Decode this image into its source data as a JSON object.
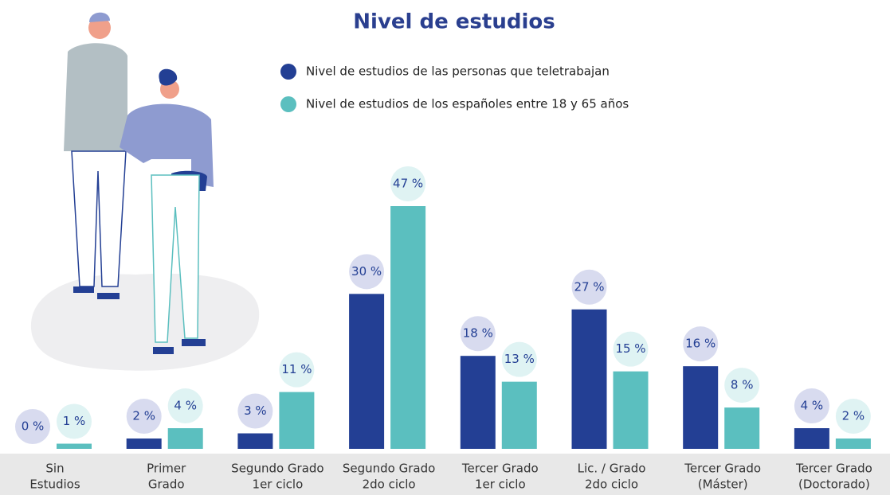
{
  "chart_data": {
    "type": "bar",
    "title": "Nivel de estudios",
    "categories": [
      [
        "Sin",
        "Estudios"
      ],
      [
        "Primer",
        "Grado"
      ],
      [
        "Segundo Grado",
        "1er ciclo"
      ],
      [
        "Segundo Grado",
        "2do ciclo"
      ],
      [
        "Tercer Grado",
        "1er ciclo"
      ],
      [
        "Lic. / Grado",
        "2do ciclo"
      ],
      [
        "Tercer Grado",
        "(Máster)"
      ],
      [
        "Tercer Grado",
        "(Doctorado)"
      ]
    ],
    "series": [
      {
        "name": "Nivel de estudios de las personas que teletrabajan",
        "color": "#233f94",
        "values": [
          0,
          2,
          3,
          30,
          18,
          27,
          16,
          4
        ],
        "value_labels": [
          "0 %",
          "2 %",
          "3 %",
          "30 %",
          "18 %",
          "27 %",
          "16 %",
          "4 %"
        ]
      },
      {
        "name": "Nivel de estudios de los españoles entre 18 y 65 años",
        "color": "#5bbfbf",
        "values": [
          1,
          4,
          11,
          47,
          13,
          15,
          8,
          2
        ],
        "value_labels": [
          "1 %",
          "4 %",
          "11 %",
          "47 %",
          "13 %",
          "15 %",
          "8 %",
          "2 %"
        ]
      }
    ]
  }
}
